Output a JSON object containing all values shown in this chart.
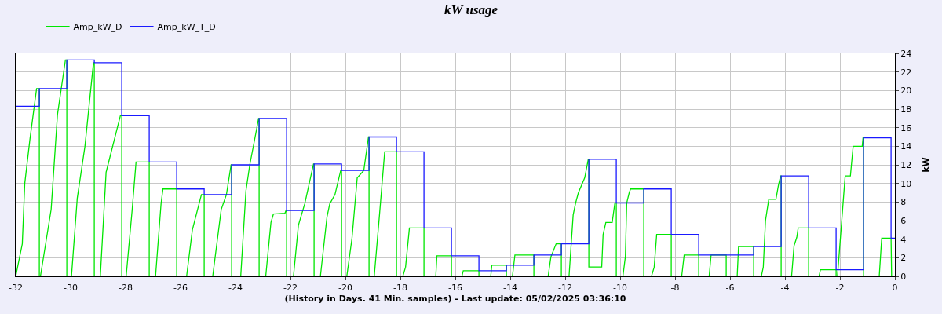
{
  "chart_data": {
    "type": "line",
    "title": "kW usage",
    "xlabel": "(History in Days. 41 Min. samples) - Last update: 05/02/2025 03:36:10",
    "ylabel": "kW",
    "series": [
      {
        "name": "Amp_kW_D",
        "color": "#00e600",
        "x": [
          -32,
          -31.76,
          -31.67,
          -31.48,
          -31.24,
          -31.14,
          -31.14,
          -31.1,
          -30.71,
          -30.48,
          -30.19,
          -30.14,
          -30.14,
          -29.97,
          -29.76,
          -29.48,
          -29.17,
          -29.14,
          -29.14,
          -28.92,
          -28.71,
          -28.19,
          -28.14,
          -28.14,
          -27.98,
          -27.76,
          -27.62,
          -27.14,
          -27.14,
          -26.91,
          -26.71,
          -26.64,
          -26.14,
          -26.14,
          -25.78,
          -25.57,
          -25.24,
          -25.14,
          -25.14,
          -24.83,
          -24.52,
          -24.33,
          -24.16,
          -24.14,
          -24.14,
          -23.81,
          -23.62,
          -23.48,
          -23.24,
          -23.16,
          -23.14,
          -23.14,
          -22.9,
          -22.71,
          -22.62,
          -22.2,
          -22.16,
          -22.14,
          -22.14,
          -21.89,
          -21.71,
          -21.48,
          -21.16,
          -21.14,
          -21.14,
          -20.91,
          -20.67,
          -20.57,
          -20.38,
          -20.17,
          -20.14,
          -20.14,
          -19.95,
          -19.76,
          -19.57,
          -19.33,
          -19.16,
          -19.14,
          -19.14,
          -18.95,
          -18.76,
          -18.57,
          -18.14,
          -18.14,
          -17.91,
          -17.81,
          -17.67,
          -17.14,
          -17.14,
          -16.71,
          -16.67,
          -16.14,
          -16.14,
          -15.76,
          -15.71,
          -15.14,
          -15.14,
          -14.71,
          -14.67,
          -14.14,
          -14.14,
          -13.92,
          -13.83,
          -13.14,
          -13.14,
          -12.62,
          -12.52,
          -12.33,
          -12.14,
          -12.14,
          -11.86,
          -11.71,
          -11.62,
          -11.52,
          -11.29,
          -11.16,
          -11.14,
          -11.14,
          -10.67,
          -10.62,
          -10.52,
          -10.29,
          -10.19,
          -10.14,
          -10.14,
          -9.9,
          -9.81,
          -9.76,
          -9.67,
          -9.62,
          -9.14,
          -9.14,
          -8.86,
          -8.76,
          -8.67,
          -8.14,
          -8.14,
          -7.76,
          -7.67,
          -7.14,
          -7.14,
          -6.76,
          -6.69,
          -6.14,
          -6.14,
          -5.74,
          -5.69,
          -5.14,
          -5.14,
          -4.86,
          -4.79,
          -4.71,
          -4.59,
          -4.33,
          -4.24,
          -4.16,
          -4.14,
          -4.14,
          -3.76,
          -3.67,
          -3.57,
          -3.52,
          -3.14,
          -3.14,
          -2.76,
          -2.71,
          -2.14,
          -2.14,
          -2.09,
          -1.81,
          -1.62,
          -1.52,
          -1.19,
          -1.16,
          -1.14,
          -1.14,
          -0.57,
          -0.48,
          -0.14,
          -0.12
        ],
        "values": [
          0,
          3.5,
          10,
          14.8,
          20.2,
          20.2,
          0,
          0,
          7.2,
          17.4,
          23.3,
          23.3,
          0,
          0,
          8.4,
          14,
          23,
          23,
          0,
          0,
          11.2,
          17.3,
          17.3,
          0,
          0,
          7.2,
          12.3,
          12.3,
          0,
          0,
          7.8,
          9.4,
          9.4,
          0,
          0,
          5,
          8.8,
          8.8,
          0,
          0,
          7.2,
          8.8,
          12,
          12,
          0,
          0,
          9.2,
          12,
          15.7,
          17,
          17,
          0,
          0,
          5.8,
          6.7,
          6.8,
          7.1,
          7.1,
          0,
          0,
          5.5,
          7.8,
          12.1,
          12.1,
          0,
          0,
          6.4,
          7.8,
          8.8,
          11.4,
          11.4,
          0,
          0,
          4.1,
          10.6,
          11.4,
          15,
          15,
          0,
          0,
          6.6,
          13.4,
          13.4,
          0,
          0,
          1,
          5.2,
          5.2,
          0,
          0,
          2.2,
          2.2,
          0,
          0,
          0.6,
          0.6,
          0,
          0,
          1.2,
          1.2,
          0,
          0,
          2.3,
          2.3,
          0,
          0,
          2.1,
          3.5,
          3.5,
          0,
          0,
          6.6,
          7.9,
          9,
          10.6,
          12.6,
          12.6,
          1,
          1,
          4.5,
          5.8,
          5.8,
          7.9,
          7.9,
          0,
          0,
          2.1,
          7.9,
          9,
          9.4,
          9.4,
          0,
          0,
          1,
          4.5,
          4.5,
          0,
          0,
          2.3,
          2.3,
          0,
          0,
          2.3,
          2.3,
          0,
          0,
          3.2,
          3.2,
          0,
          0,
          1,
          6,
          8.3,
          8.3,
          9.8,
          10.8,
          10.8,
          0,
          0,
          3.3,
          4.2,
          5.2,
          5.2,
          0,
          0,
          0.7,
          0.7,
          0,
          0,
          10.8,
          10.8,
          14,
          14,
          14.9,
          14.9,
          0,
          0,
          4.1,
          4.1,
          0
        ]
      },
      {
        "name": "Amp_kW_T_D",
        "color": "#1a1aff",
        "type": "step",
        "x": [
          -32,
          -31.14,
          -30.14,
          -29.14,
          -28.14,
          -27.14,
          -26.14,
          -25.14,
          -24.14,
          -23.14,
          -22.14,
          -21.14,
          -20.14,
          -19.14,
          -18.14,
          -17.14,
          -16.14,
          -15.14,
          -14.14,
          -13.14,
          -12.14,
          -11.14,
          -10.14,
          -9.14,
          -8.14,
          -7.14,
          -6.14,
          -5.14,
          -4.14,
          -3.14,
          -2.14,
          -1.14,
          -0.14,
          0
        ],
        "values": [
          18.3,
          20.2,
          23.3,
          23.0,
          17.3,
          12.3,
          9.4,
          8.8,
          12.0,
          17.0,
          7.1,
          12.1,
          11.4,
          15.0,
          13.4,
          5.2,
          2.2,
          0.6,
          1.2,
          2.3,
          3.5,
          12.6,
          7.9,
          9.4,
          4.5,
          2.3,
          2.3,
          3.2,
          10.8,
          5.2,
          0.7,
          14.9,
          4.1,
          4.1
        ]
      }
    ],
    "xlim": [
      -32,
      0
    ],
    "xticks": [
      -32,
      -30,
      -28,
      -26,
      -24,
      -22,
      -20,
      -18,
      -16,
      -14,
      -12,
      -10,
      -8,
      -6,
      -4,
      -2,
      0
    ],
    "ylim": [
      0,
      24
    ],
    "yticks": [
      0,
      2,
      4,
      6,
      8,
      10,
      12,
      14,
      16,
      18,
      20,
      22,
      24
    ],
    "grid": true,
    "legend": "top left",
    "marker": "none",
    "line_style": "solid"
  }
}
